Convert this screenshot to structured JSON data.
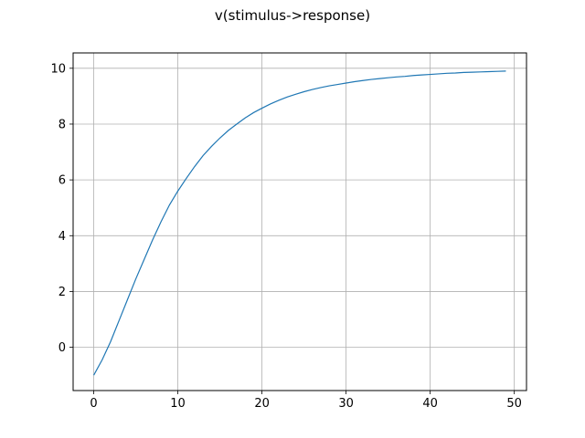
{
  "chart_data": {
    "type": "line",
    "title": "v(stimulus->response)",
    "xlabel": "",
    "ylabel": "",
    "xlim": [
      -2.45,
      51.45
    ],
    "ylim": [
      -1.55,
      10.55
    ],
    "xticks": [
      0,
      10,
      20,
      30,
      40,
      50
    ],
    "yticks": [
      0,
      2,
      4,
      6,
      8,
      10
    ],
    "grid": true,
    "line_color": "#1f77b4",
    "series": [
      {
        "x": [
          0,
          1,
          2,
          3,
          4,
          5,
          6,
          7,
          8,
          9,
          10,
          11,
          12,
          13,
          14,
          15,
          16,
          17,
          18,
          19,
          20,
          21,
          22,
          23,
          24,
          25,
          26,
          27,
          28,
          29,
          30,
          31,
          32,
          33,
          34,
          35,
          36,
          37,
          38,
          39,
          40,
          41,
          42,
          43,
          44,
          45,
          46,
          47,
          48,
          49
        ],
        "values": [
          -1.0,
          -0.45,
          0.2,
          0.95,
          1.7,
          2.45,
          3.15,
          3.85,
          4.5,
          5.1,
          5.6,
          6.05,
          6.48,
          6.87,
          7.2,
          7.5,
          7.77,
          8.0,
          8.22,
          8.41,
          8.57,
          8.72,
          8.85,
          8.97,
          9.07,
          9.16,
          9.24,
          9.31,
          9.37,
          9.42,
          9.47,
          9.52,
          9.56,
          9.6,
          9.63,
          9.66,
          9.69,
          9.71,
          9.74,
          9.76,
          9.78,
          9.8,
          9.82,
          9.83,
          9.85,
          9.86,
          9.87,
          9.88,
          9.89,
          9.9
        ]
      }
    ]
  }
}
